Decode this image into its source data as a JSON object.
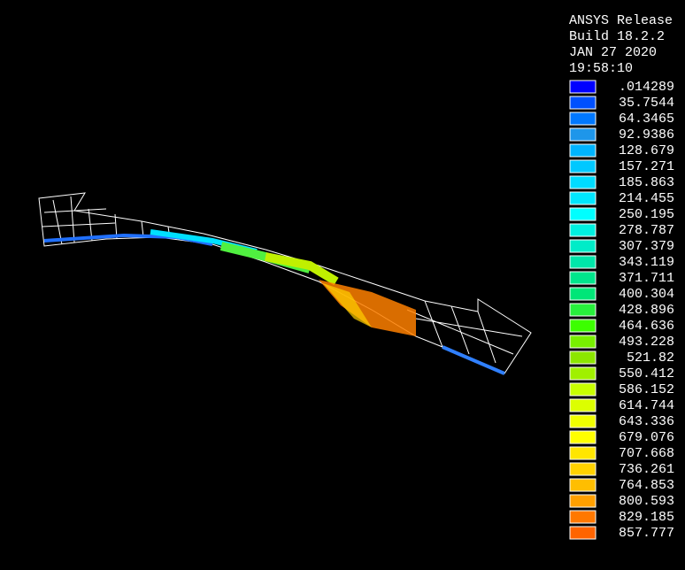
{
  "header": {
    "lines": [
      "ANSYS Release",
      "Build 18.2.2",
      "JAN 27 2020",
      "19:58:10"
    ]
  },
  "legend": {
    "entries": [
      {
        "label": ".014289",
        "color": "#0000ff"
      },
      {
        "label": "35.7544",
        "color": "#0050ff"
      },
      {
        "label": "64.3465",
        "color": "#0078ff"
      },
      {
        "label": "92.9386",
        "color": "#1e96ea"
      },
      {
        "label": "128.679",
        "color": "#00b4ff"
      },
      {
        "label": "157.271",
        "color": "#00c8ff"
      },
      {
        "label": "185.863",
        "color": "#00dcff"
      },
      {
        "label": "214.455",
        "color": "#00e6ff"
      },
      {
        "label": "250.195",
        "color": "#00ffff"
      },
      {
        "label": "278.787",
        "color": "#00f0e0"
      },
      {
        "label": "307.379",
        "color": "#00ecc8"
      },
      {
        "label": "343.119",
        "color": "#00e6aa"
      },
      {
        "label": "371.711",
        "color": "#00e68c"
      },
      {
        "label": "400.304",
        "color": "#00e678"
      },
      {
        "label": "428.896",
        "color": "#28f03c"
      },
      {
        "label": "464.636",
        "color": "#3cff00"
      },
      {
        "label": "493.228",
        "color": "#78f000"
      },
      {
        "label": "521.82",
        "color": "#8ce600"
      },
      {
        "label": "550.412",
        "color": "#a0f000"
      },
      {
        "label": "586.152",
        "color": "#c8ff00"
      },
      {
        "label": "614.744",
        "color": "#dcff00"
      },
      {
        "label": "643.336",
        "color": "#f0ff00"
      },
      {
        "label": "679.076",
        "color": "#ffff00"
      },
      {
        "label": "707.668",
        "color": "#ffe600"
      },
      {
        "label": "736.261",
        "color": "#ffd200"
      },
      {
        "label": "764.853",
        "color": "#ffbe00"
      },
      {
        "label": "800.593",
        "color": "#ffa000"
      },
      {
        "label": "829.185",
        "color": "#ff7800"
      },
      {
        "label": "857.777",
        "color": "#ff6400"
      }
    ]
  }
}
